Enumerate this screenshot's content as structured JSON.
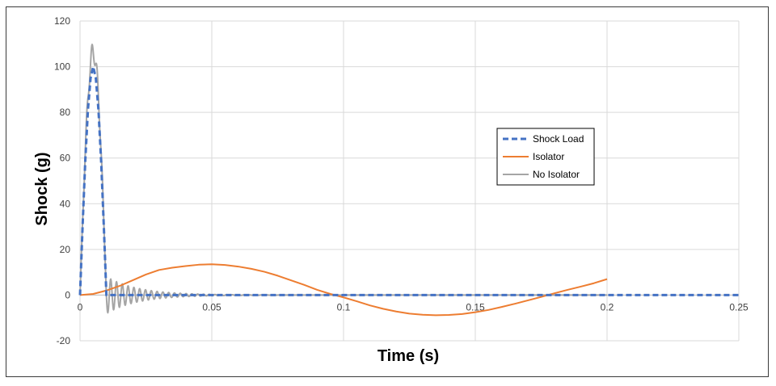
{
  "chart_data": {
    "type": "line",
    "xlabel": "Time (s)",
    "ylabel": "Shock (g)",
    "xlim": [
      0,
      0.25
    ],
    "ylim": [
      -20,
      120
    ],
    "x_ticks": [
      "0",
      "0.05",
      "0.1",
      "0.15",
      "0.2",
      "0.25"
    ],
    "y_ticks": [
      "-20",
      "0",
      "20",
      "40",
      "60",
      "80",
      "100",
      "120"
    ],
    "grid": true,
    "legend_position": "right",
    "series": [
      {
        "name": "Shock Load",
        "color": "#4472c4",
        "style": "dashed",
        "x": [
          0,
          0.001,
          0.002,
          0.003,
          0.004,
          0.005,
          0.006,
          0.007,
          0.008,
          0.009,
          0.0095,
          0.01,
          0.05,
          0.1,
          0.15,
          0.2,
          0.25
        ],
        "y": [
          0,
          31,
          59,
          81,
          95,
          100,
          95,
          81,
          59,
          31,
          16,
          0,
          0,
          0,
          0,
          0,
          0
        ]
      },
      {
        "name": "Isolator",
        "color": "#ed7d31",
        "style": "solid",
        "x": [
          0,
          0.005,
          0.01,
          0.015,
          0.02,
          0.025,
          0.03,
          0.035,
          0.04,
          0.045,
          0.05,
          0.055,
          0.06,
          0.065,
          0.07,
          0.075,
          0.08,
          0.085,
          0.09,
          0.095,
          0.1,
          0.105,
          0.11,
          0.115,
          0.12,
          0.125,
          0.13,
          0.135,
          0.14,
          0.145,
          0.15,
          0.155,
          0.16,
          0.165,
          0.17,
          0.175,
          0.18,
          0.185,
          0.19,
          0.195,
          0.2
        ],
        "y": [
          0,
          0.5,
          2,
          4,
          6.5,
          9,
          11,
          12,
          12.7,
          13.3,
          13.5,
          13.2,
          12.5,
          11.5,
          10.2,
          8.5,
          6.5,
          4.5,
          2.3,
          0.5,
          -1,
          -2.7,
          -4.5,
          -6,
          -7.2,
          -8.1,
          -8.6,
          -8.8,
          -8.7,
          -8.3,
          -7.5,
          -6.5,
          -5.2,
          -3.8,
          -2.3,
          -0.8,
          0.8,
          2.3,
          3.7,
          5.2,
          7
        ]
      },
      {
        "name": "No Isolator",
        "color": "#a5a5a5",
        "style": "solid",
        "peak": 106.5,
        "first_negative": -8,
        "ring_decay_end": 0.075
      }
    ]
  }
}
